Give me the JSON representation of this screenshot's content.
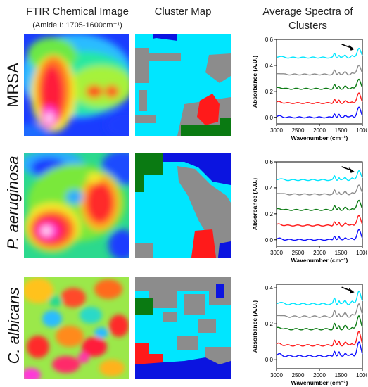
{
  "headers": {
    "col1_title": "FTIR Chemical Image",
    "col1_sub": "(Amide I: 1705-1600cm⁻¹)",
    "col2_title": "Cluster Map",
    "col3_title_1": "Average Spectra of",
    "col3_title_2": "Clusters"
  },
  "rows": [
    {
      "label": "MRSA"
    },
    {
      "label": "P. aeruginosa"
    },
    {
      "label": "C. albicans"
    }
  ],
  "palette": {
    "cyan": "#00e6ff",
    "gray": "#8c8c8c",
    "green": "#0a7a12",
    "red": "#ff1a1a",
    "blue": "#1010ff",
    "map_blue": "#0b14e0"
  },
  "chart_data": [
    {
      "type": "line",
      "xlabel": "Wavenumber (cm⁻¹)",
      "ylabel": "Absorbance (A.U.)",
      "xlim": [
        3000,
        1000
      ],
      "xticks": [
        "3000",
        "2500",
        "2000",
        "1500",
        "1000"
      ],
      "ylim": [
        -0.05,
        0.6
      ],
      "yticks": [
        "0.0",
        "0.2",
        "0.4",
        "0.6"
      ],
      "series": [
        {
          "color": "#00e6ff",
          "offset": 0.46
        },
        {
          "color": "#8c8c8c",
          "offset": 0.33
        },
        {
          "color": "#0a7a12",
          "offset": 0.22
        },
        {
          "color": "#ff1a1a",
          "offset": 0.11
        },
        {
          "color": "#1010ff",
          "offset": 0.0
        }
      ]
    },
    {
      "type": "line",
      "xlabel": "Wavenumber (cm⁻¹)",
      "ylabel": "Absorbance (A.U.)",
      "xlim": [
        3000,
        1000
      ],
      "xticks": [
        "3000",
        "2500",
        "2000",
        "1500",
        "1000"
      ],
      "ylim": [
        -0.05,
        0.6
      ],
      "yticks": [
        "0.0",
        "0.2",
        "0.4",
        "0.6"
      ],
      "series": [
        {
          "color": "#00e6ff",
          "offset": 0.46
        },
        {
          "color": "#8c8c8c",
          "offset": 0.35
        },
        {
          "color": "#0a7a12",
          "offset": 0.23
        },
        {
          "color": "#ff1a1a",
          "offset": 0.11
        },
        {
          "color": "#1010ff",
          "offset": 0.0
        }
      ]
    },
    {
      "type": "line",
      "xlabel": "Wavenumber (cm⁻¹)",
      "ylabel": "Absorbance (A.U.)",
      "xlim": [
        3000,
        1000
      ],
      "xticks": [
        "3000",
        "2500",
        "2000",
        "1500",
        "1000"
      ],
      "ylim": [
        -0.05,
        0.42
      ],
      "yticks": [
        "0.0",
        "0.2",
        "0.4"
      ],
      "series": [
        {
          "color": "#00e6ff",
          "offset": 0.31
        },
        {
          "color": "#8c8c8c",
          "offset": 0.24
        },
        {
          "color": "#0a7a12",
          "offset": 0.17
        },
        {
          "color": "#ff1a1a",
          "offset": 0.08
        },
        {
          "color": "#1010ff",
          "offset": 0.02
        }
      ]
    }
  ]
}
